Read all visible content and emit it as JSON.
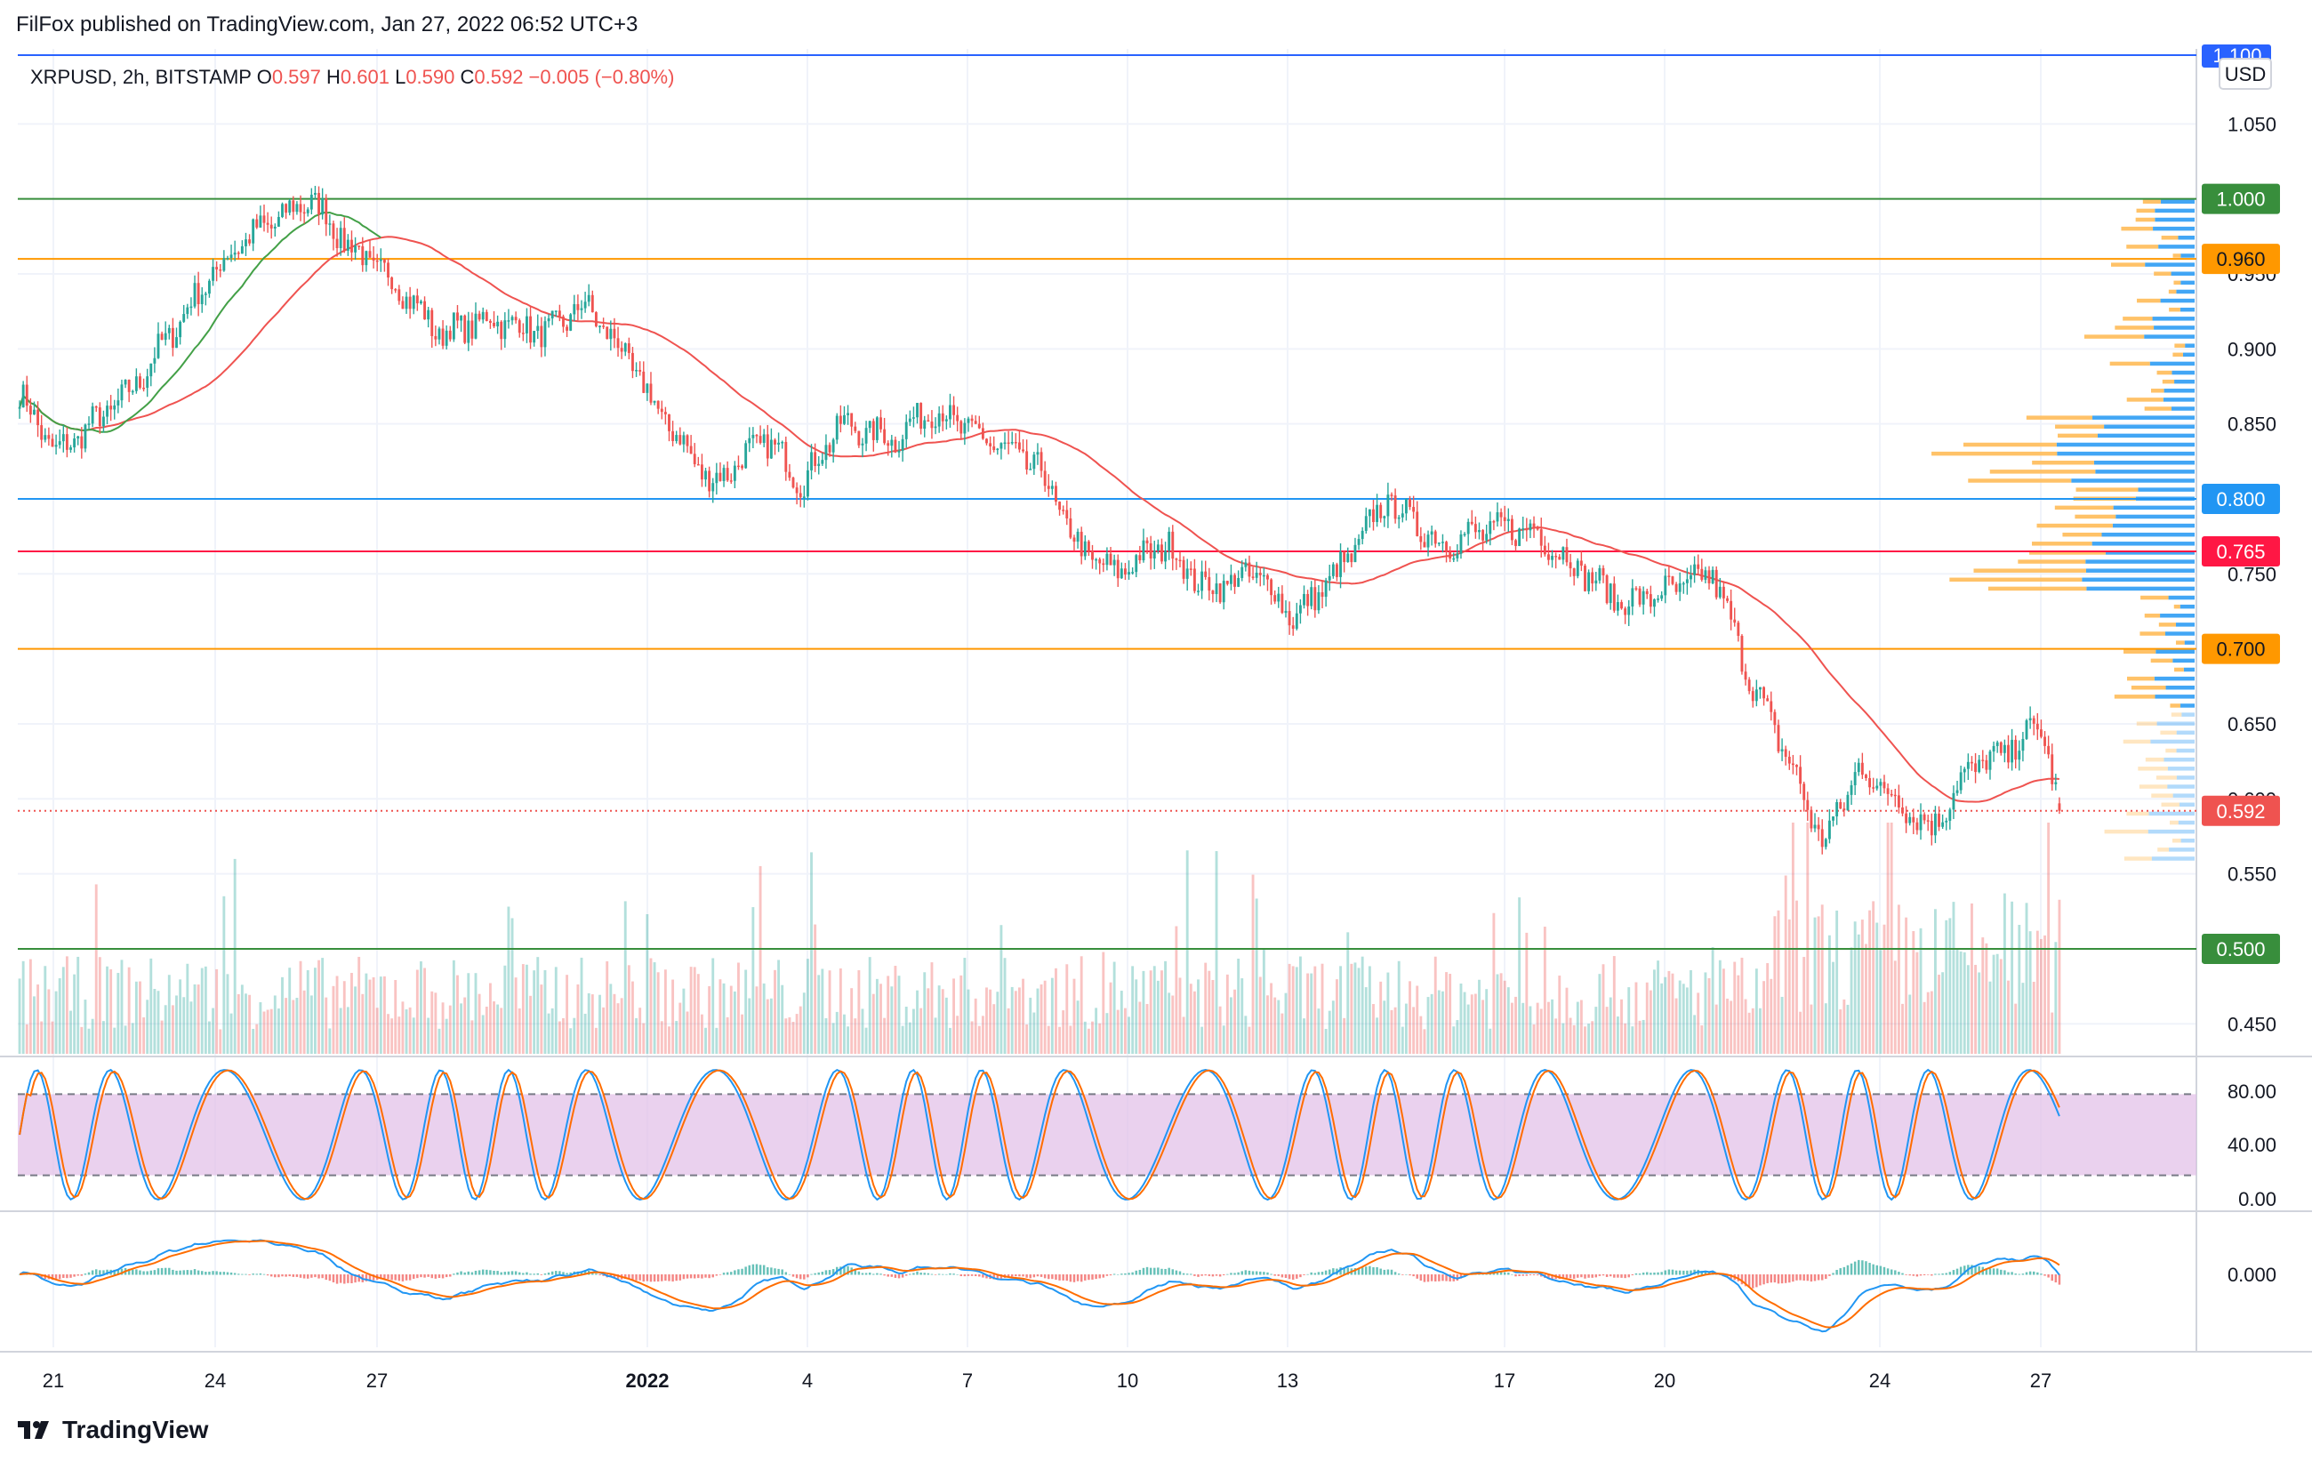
{
  "header": {
    "published": "FilFox published on TradingView.com, Jan 27, 2022 06:52 UTC+3"
  },
  "footer": {
    "brand": "TradingView"
  },
  "colors": {
    "up": "#26a69a",
    "down": "#ef5350",
    "ma": "#ef5350",
    "ma_long": "#43a047",
    "stoch_k": "#2196f3",
    "stoch_d": "#ff6d00",
    "stoch_band": "#e1bee7",
    "macd": "#2196f3",
    "signal": "#ff6d00",
    "vp_up": "#2196f3",
    "vp_down": "#ffb74d"
  },
  "chart_data": {
    "type": "candlestick",
    "symbol_line": {
      "symbol": "XRPUSD, 2h, BITSTAMP",
      "o_label": "O",
      "o": "0.597",
      "h_label": "H",
      "h": "0.601",
      "l_label": "L",
      "l": "0.590",
      "c_label": "C",
      "c": "0.592",
      "change": "−0.005 (−0.80%)"
    },
    "currency": "USD",
    "price_axis": {
      "ticks": [
        "1.050",
        "0.950",
        "0.900",
        "0.850",
        "0.750",
        "0.650",
        "0.600",
        "0.550",
        "0.450"
      ],
      "range": [
        0.43,
        1.1
      ]
    },
    "top_line_label": "1.100",
    "levels": [
      {
        "value": 1.0,
        "label": "1.000",
        "color": "#388e3c"
      },
      {
        "value": 0.96,
        "label": "0.960",
        "color": "#ff9800"
      },
      {
        "value": 0.8,
        "label": "0.800",
        "color": "#2196f3"
      },
      {
        "value": 0.765,
        "label": "0.765",
        "color": "#ff1744"
      },
      {
        "value": 0.7,
        "label": "0.700",
        "color": "#ff9800"
      },
      {
        "value": 0.5,
        "label": "0.500",
        "color": "#388e3c"
      }
    ],
    "last_price": {
      "value": 0.592,
      "label": "0.592"
    },
    "time_axis": [
      "21",
      "24",
      "27",
      "2022",
      "4",
      "7",
      "10",
      "13",
      "17",
      "20",
      "24",
      "27"
    ],
    "anchors": [
      [
        0,
        0.87
      ],
      [
        2,
        0.83
      ],
      [
        6,
        0.87
      ],
      [
        10,
        0.94
      ],
      [
        12,
        0.97
      ],
      [
        16,
        1.0
      ],
      [
        18,
        0.97
      ],
      [
        21,
        0.94
      ],
      [
        23,
        0.91
      ],
      [
        26,
        0.92
      ],
      [
        29,
        0.91
      ],
      [
        31,
        0.93
      ],
      [
        33,
        0.9
      ],
      [
        35,
        0.86
      ],
      [
        38,
        0.81
      ],
      [
        41,
        0.84
      ],
      [
        43,
        0.81
      ],
      [
        45,
        0.85
      ],
      [
        48,
        0.84
      ],
      [
        50,
        0.86
      ],
      [
        53,
        0.84
      ],
      [
        56,
        0.82
      ],
      [
        58,
        0.77
      ],
      [
        60,
        0.75
      ],
      [
        63,
        0.77
      ],
      [
        65,
        0.74
      ],
      [
        68,
        0.75
      ],
      [
        70,
        0.72
      ],
      [
        73,
        0.76
      ],
      [
        75,
        0.8
      ],
      [
        78,
        0.77
      ],
      [
        81,
        0.78
      ],
      [
        83,
        0.78
      ],
      [
        85,
        0.76
      ],
      [
        88,
        0.73
      ],
      [
        91,
        0.74
      ],
      [
        93,
        0.75
      ],
      [
        95,
        0.68
      ],
      [
        97,
        0.63
      ],
      [
        99,
        0.57
      ],
      [
        101,
        0.62
      ],
      [
        103,
        0.6
      ],
      [
        105,
        0.58
      ],
      [
        107,
        0.62
      ],
      [
        109,
        0.63
      ],
      [
        111,
        0.65
      ],
      [
        112,
        0.59
      ]
    ],
    "volume_scale": 1,
    "stoch_rsi": {
      "ticks": [
        "80.00",
        "40.00",
        "0.00"
      ],
      "upper": 80,
      "lower": 20
    },
    "macd": {
      "ticks": [
        "0.000"
      ]
    }
  }
}
